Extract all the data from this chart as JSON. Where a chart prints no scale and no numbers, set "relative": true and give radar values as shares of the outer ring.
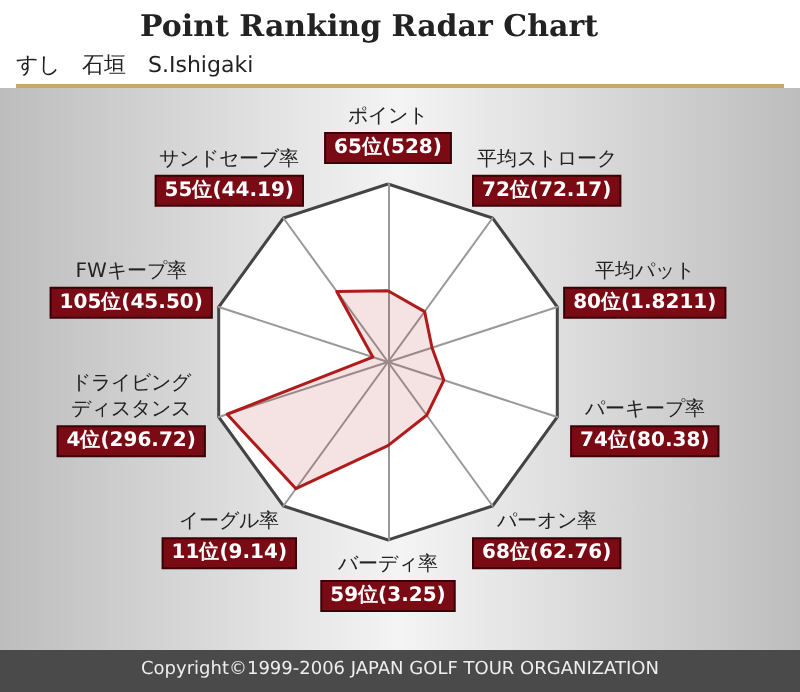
{
  "chart_data": {
    "type": "radar",
    "title": "Point Ranking Radar Chart",
    "subtitle": "すし　石垣　S.Ishigaki",
    "categories": [
      "ポイント",
      "平均ストローク",
      "平均パット",
      "パーキープ率",
      "パーオン率",
      "バーディ率",
      "イーグル率",
      "ドライビングディスタンス",
      "FWキープ率",
      "サンドセーブ率"
    ],
    "relative": true,
    "series": [
      {
        "color": "#b01c1c",
        "values": [
          0.4,
          0.35,
          0.26,
          0.33,
          0.37,
          0.47,
          0.88,
          0.95,
          0.09,
          0.49
        ]
      }
    ],
    "annotations": [
      {
        "text": "65位(528)",
        "x": "ポイント"
      },
      {
        "text": "72位(72.17)",
        "x": "平均ストローク"
      },
      {
        "text": "80位(1.8211)",
        "x": "平均パット"
      },
      {
        "text": "74位(80.38)",
        "x": "パーキープ率"
      },
      {
        "text": "68位(62.76)",
        "x": "パーオン率"
      },
      {
        "text": "59位(3.25)",
        "x": "バーディ率"
      },
      {
        "text": "11位(9.14)",
        "x": "イーグル率"
      },
      {
        "text": "4位(296.72)",
        "x": "ドライビングディスタンス"
      },
      {
        "text": "105位(45.50)",
        "x": "FWキープ率"
      },
      {
        "text": "55位(44.19)",
        "x": "サンドセーブ率"
      },
      "Copyright©1999-2006 JAPAN GOLF TOUR ORGANIZATION"
    ]
  }
}
